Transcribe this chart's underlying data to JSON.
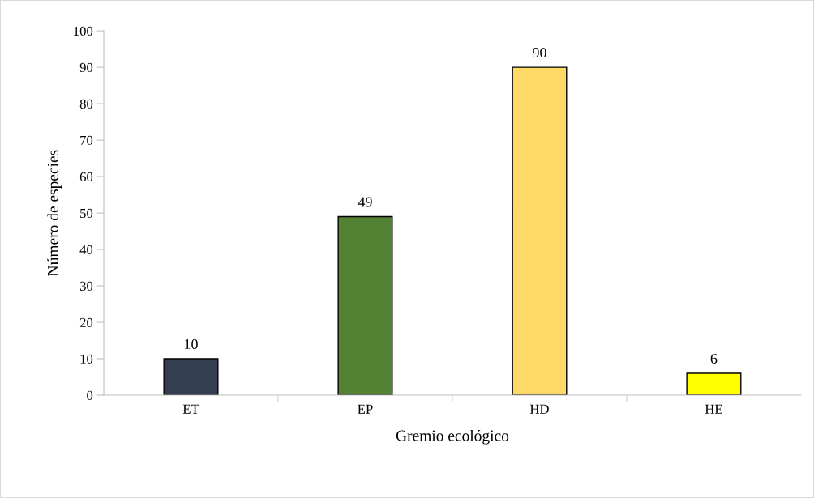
{
  "chart_data": {
    "type": "bar",
    "xlabel": "Gremio ecológico",
    "ylabel": "Número de especies",
    "categories": [
      "ET",
      "EP",
      "HD",
      "HE"
    ],
    "values": [
      10,
      49,
      90,
      6
    ],
    "colors": [
      "#333f50",
      "#548235",
      "#ffd966",
      "#ffff00"
    ],
    "ylim": [
      0,
      100
    ],
    "yticks": [
      0,
      10,
      20,
      30,
      40,
      50,
      60,
      70,
      80,
      90,
      100
    ],
    "grid": false,
    "legend": false,
    "data_labels": true
  }
}
